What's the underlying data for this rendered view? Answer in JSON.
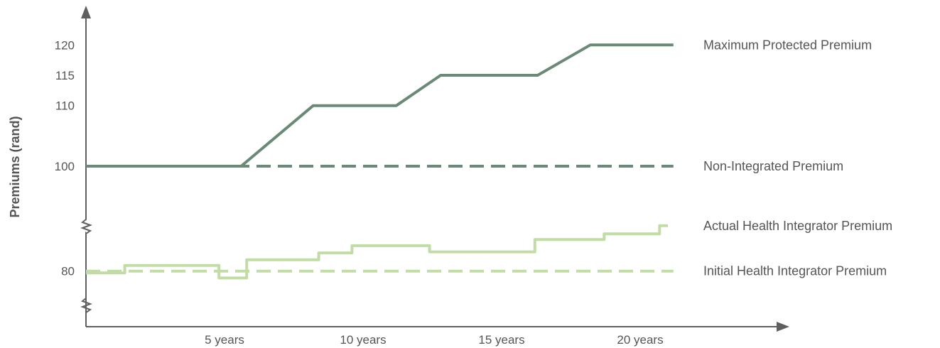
{
  "chart_data": {
    "type": "line",
    "title": "",
    "ylabel": "Premiums (rand)",
    "xlabel": "",
    "x_ticks": [
      {
        "value": 5,
        "label": "5 years"
      },
      {
        "value": 10,
        "label": "10 years"
      },
      {
        "value": 15,
        "label": "15 years"
      },
      {
        "value": 20,
        "label": "20 years"
      }
    ],
    "y_ticks": [
      {
        "value": 80,
        "label": "80"
      },
      {
        "value": 100,
        "label": "100"
      },
      {
        "value": 110,
        "label": "110"
      },
      {
        "value": 115,
        "label": "115"
      },
      {
        "value": 120,
        "label": "120"
      }
    ],
    "xlim": [
      0,
      25
    ],
    "ylim": [
      73,
      128
    ],
    "y_axis_breaks": [
      93,
      76
    ],
    "grid": false,
    "series": [
      {
        "name": "Maximum Protected Premium",
        "color": "#6a8a77",
        "style": "solid",
        "points": [
          [
            0,
            100
          ],
          [
            5.6,
            100
          ],
          [
            8.2,
            110
          ],
          [
            11.2,
            110
          ],
          [
            12.8,
            115
          ],
          [
            16.3,
            115
          ],
          [
            18.2,
            120
          ],
          [
            21.2,
            120
          ]
        ]
      },
      {
        "name": "Non-Integrated Premium",
        "color": "#6a8a77",
        "style": "dashed",
        "points": [
          [
            0,
            100
          ],
          [
            21.2,
            100
          ]
        ]
      },
      {
        "name": "Actual Health Integrator Premium",
        "color": "#c2dca6",
        "style": "step",
        "points": [
          [
            0,
            79.7
          ],
          [
            1.4,
            79.7
          ],
          [
            1.4,
            80.9
          ],
          [
            4.8,
            80.9
          ],
          [
            4.8,
            78.9
          ],
          [
            5.8,
            78.9
          ],
          [
            5.8,
            81.8
          ],
          [
            8.4,
            81.8
          ],
          [
            8.4,
            83.1
          ],
          [
            9.6,
            83.1
          ],
          [
            9.6,
            84.5
          ],
          [
            12.4,
            84.5
          ],
          [
            12.4,
            83.3
          ],
          [
            16.2,
            83.3
          ],
          [
            16.2,
            85.7
          ],
          [
            18.7,
            85.7
          ],
          [
            18.7,
            86.8
          ],
          [
            20.7,
            86.8
          ],
          [
            20.7,
            88.4
          ],
          [
            21.0,
            88.4
          ]
        ]
      },
      {
        "name": "Initial Health Integrator Premium",
        "color": "#c2dca6",
        "style": "dashed",
        "points": [
          [
            0,
            80
          ],
          [
            21.2,
            80
          ]
        ]
      }
    ]
  },
  "colors": {
    "axis": "#5f5f5f",
    "text": "#555555"
  }
}
